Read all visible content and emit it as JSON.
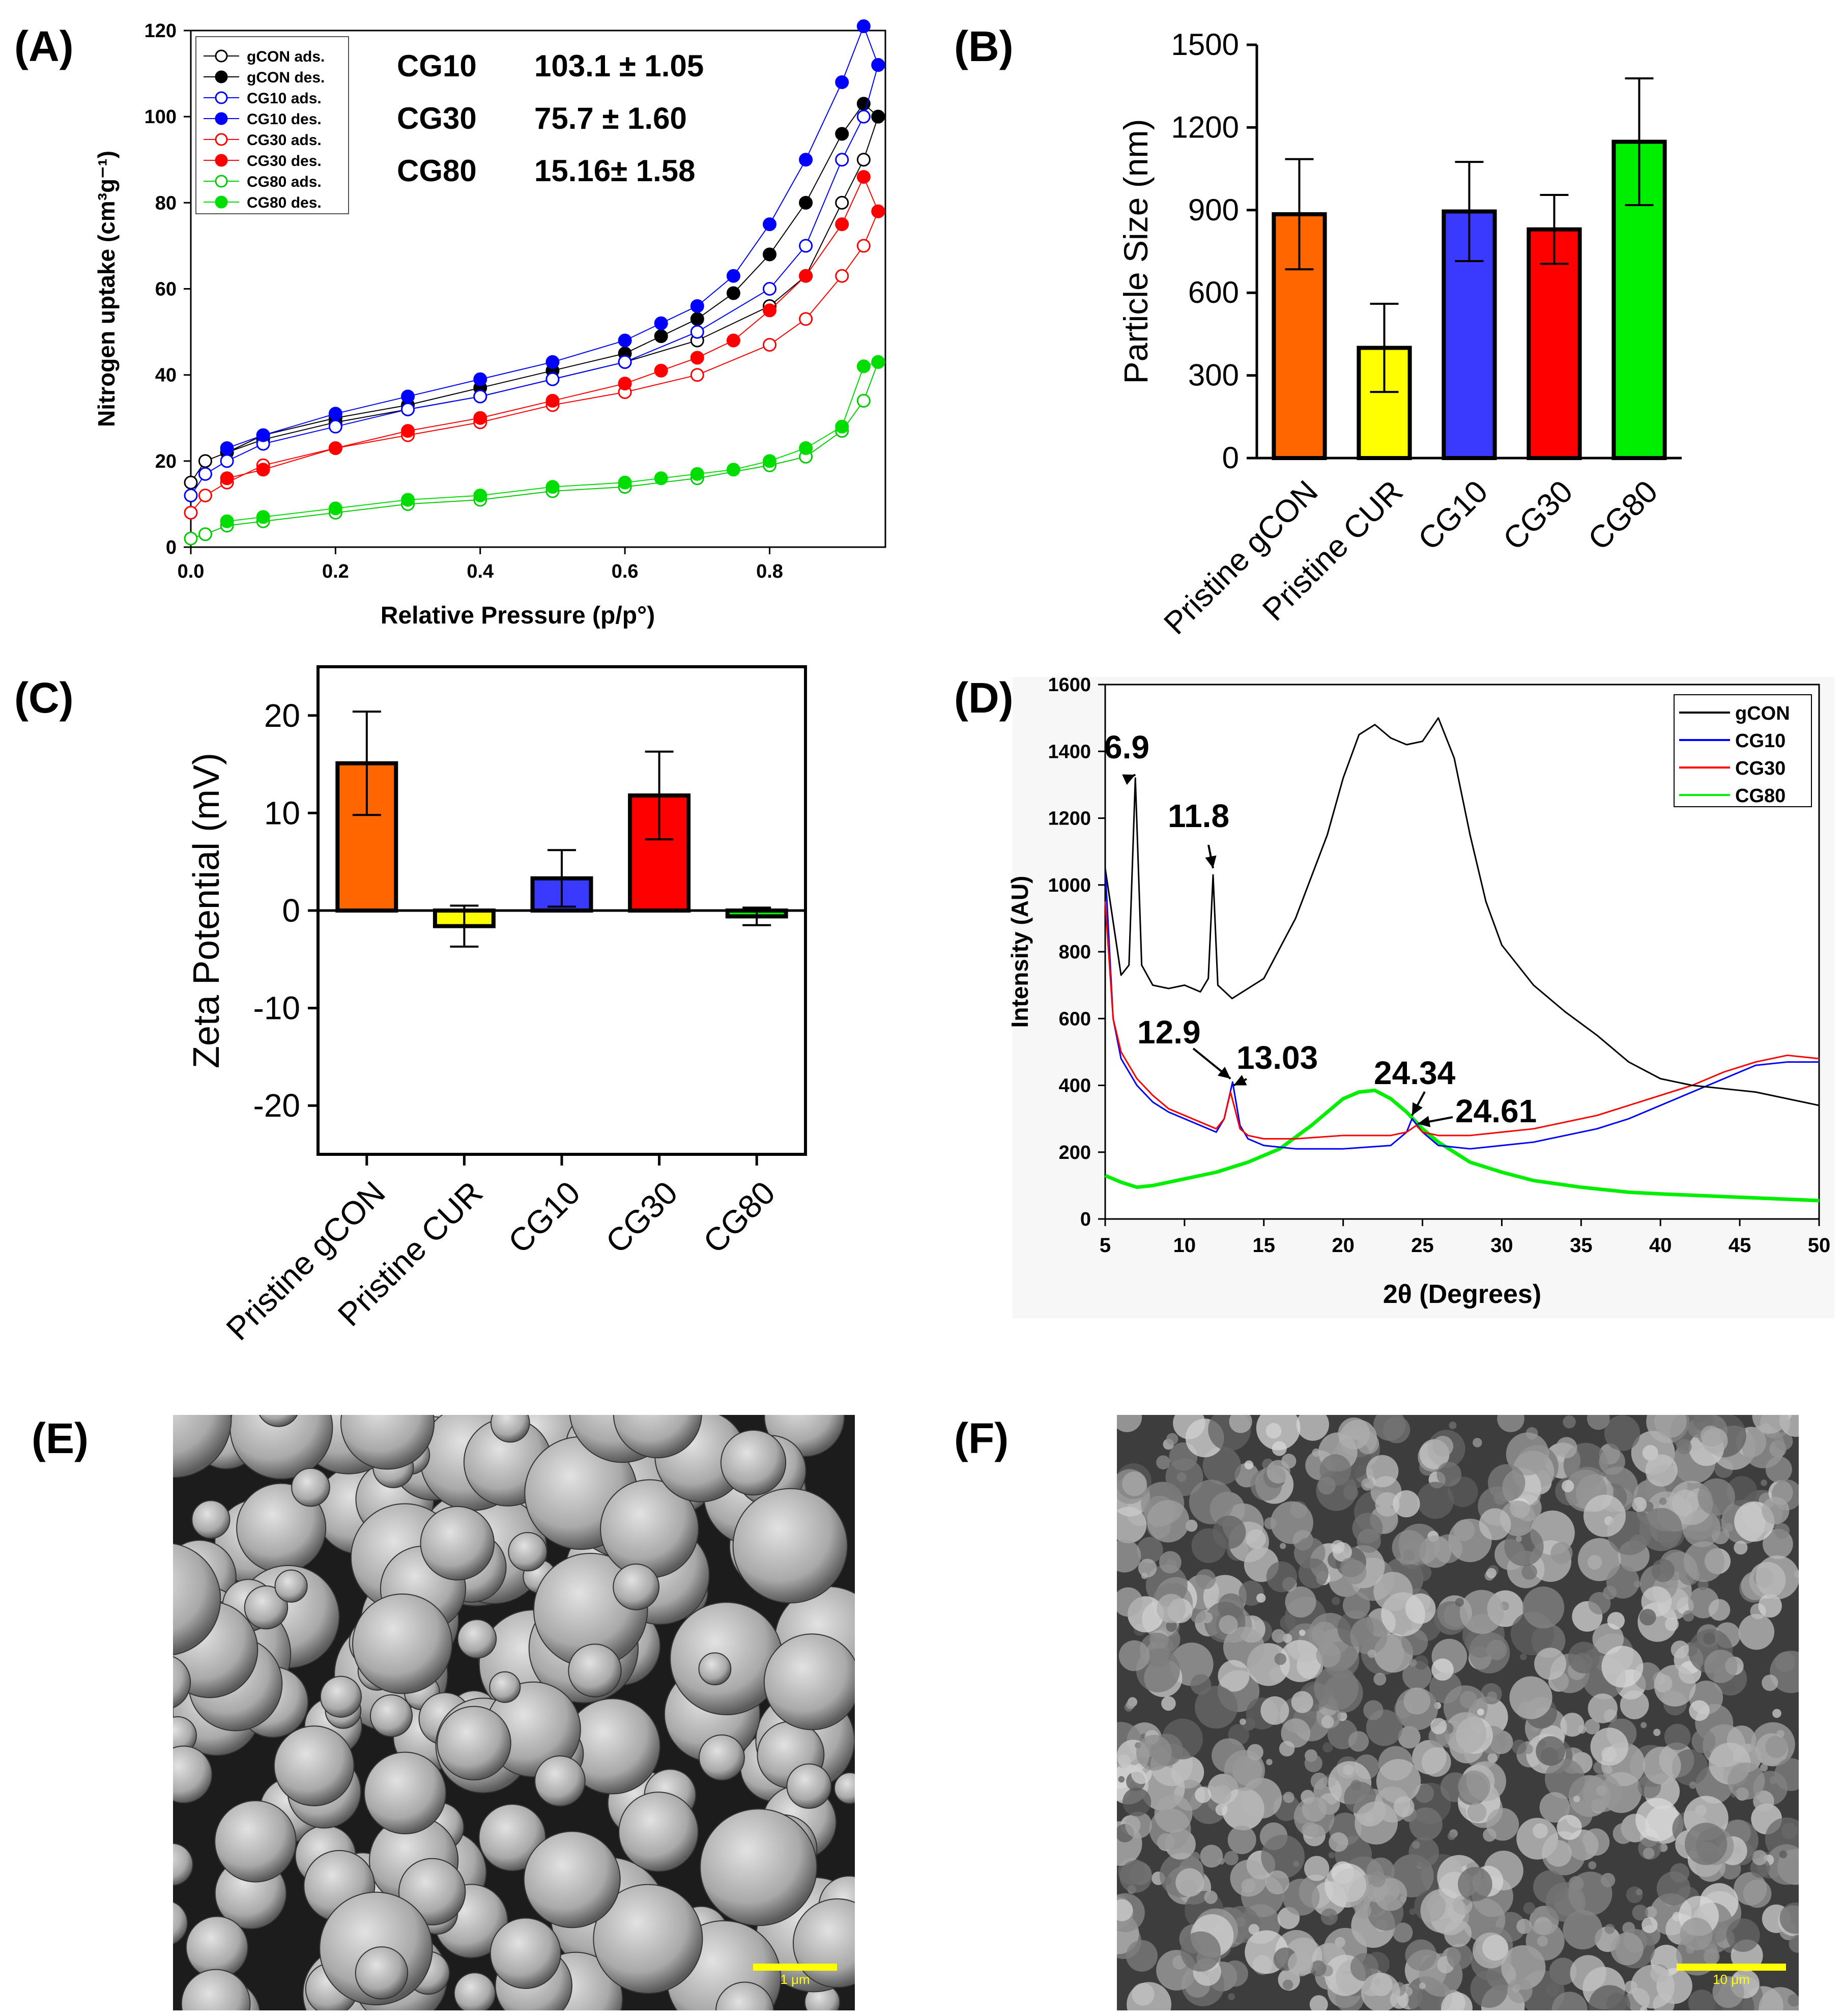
{
  "panels": {
    "A": {
      "label": "(A)"
    },
    "B": {
      "label": "(B)"
    },
    "C": {
      "label": "(C)"
    },
    "D": {
      "label": "(D)"
    },
    "E": {
      "label": "(E)",
      "scalebar": "1 μm"
    },
    "F": {
      "label": "(F)",
      "scalebar": "10 μm"
    }
  },
  "colors": {
    "gCON": "#000000",
    "CG10": "#0000ff",
    "CG30": "#ff0000",
    "CG80": "#00dd00",
    "orange": "#ff6600",
    "yellow": "#ffff00",
    "blueBar": "#3a3aff",
    "redBar": "#ff0000",
    "greenBar": "#00ee00"
  },
  "chart_data": [
    {
      "type": "scatter",
      "panel": "A",
      "xlabel": "Relative Pressure (p/p°)",
      "ylabel": "Nitrogen uptake (cm³g⁻¹)",
      "xlim": [
        0,
        0.96
      ],
      "ylim": [
        0,
        120
      ],
      "xticks": [
        "0.0",
        "0.2",
        "0.4",
        "0.6",
        "0.8"
      ],
      "yticks": [
        "0",
        "20",
        "40",
        "60",
        "80",
        "100",
        "120"
      ],
      "legend_position": "top-left",
      "annotations": [
        {
          "sample": "CG10",
          "value": "103.1 ± 1.05"
        },
        {
          "sample": "CG30",
          "value": "75.7 ± 1.60"
        },
        {
          "sample": "CG80",
          "value": "15.16± 1.58"
        }
      ],
      "series": [
        {
          "name": "gCON ads.",
          "color": "#000000",
          "filled": false,
          "x": [
            0.0,
            0.02,
            0.05,
            0.1,
            0.2,
            0.3,
            0.4,
            0.5,
            0.6,
            0.7,
            0.8,
            0.85,
            0.9,
            0.93,
            0.95
          ],
          "y": [
            15,
            20,
            22,
            25,
            29,
            32,
            35,
            39,
            43,
            48,
            56,
            63,
            80,
            90,
            100
          ]
        },
        {
          "name": "gCON des.",
          "color": "#000000",
          "filled": true,
          "x": [
            0.05,
            0.1,
            0.2,
            0.3,
            0.4,
            0.5,
            0.6,
            0.65,
            0.7,
            0.75,
            0.8,
            0.85,
            0.9,
            0.93,
            0.95
          ],
          "y": [
            22,
            26,
            30,
            33,
            37,
            41,
            45,
            49,
            53,
            59,
            68,
            80,
            96,
            103,
            100
          ]
        },
        {
          "name": "CG10 ads.",
          "color": "#0000ff",
          "filled": false,
          "x": [
            0.0,
            0.02,
            0.05,
            0.1,
            0.2,
            0.3,
            0.4,
            0.5,
            0.6,
            0.7,
            0.8,
            0.85,
            0.9,
            0.93,
            0.95
          ],
          "y": [
            12,
            17,
            20,
            24,
            28,
            32,
            35,
            39,
            43,
            50,
            60,
            70,
            90,
            100,
            112
          ]
        },
        {
          "name": "CG10 des.",
          "color": "#0000ff",
          "filled": true,
          "x": [
            0.05,
            0.1,
            0.2,
            0.3,
            0.4,
            0.5,
            0.6,
            0.65,
            0.7,
            0.75,
            0.8,
            0.85,
            0.9,
            0.93,
            0.95
          ],
          "y": [
            23,
            26,
            31,
            35,
            39,
            43,
            48,
            52,
            56,
            63,
            75,
            90,
            108,
            121,
            112
          ]
        },
        {
          "name": "CG30 ads.",
          "color": "#ff0000",
          "filled": false,
          "x": [
            0.0,
            0.02,
            0.05,
            0.1,
            0.2,
            0.3,
            0.4,
            0.5,
            0.6,
            0.7,
            0.8,
            0.85,
            0.9,
            0.93,
            0.95
          ],
          "y": [
            8,
            12,
            15,
            19,
            23,
            26,
            29,
            33,
            36,
            40,
            47,
            53,
            63,
            70,
            78
          ]
        },
        {
          "name": "CG30 des.",
          "color": "#ff0000",
          "filled": true,
          "x": [
            0.05,
            0.1,
            0.2,
            0.3,
            0.4,
            0.5,
            0.6,
            0.65,
            0.7,
            0.75,
            0.8,
            0.85,
            0.9,
            0.93,
            0.95
          ],
          "y": [
            16,
            18,
            23,
            27,
            30,
            34,
            38,
            41,
            44,
            48,
            55,
            63,
            75,
            86,
            78
          ]
        },
        {
          "name": "CG80 ads.",
          "color": "#00cc00",
          "filled": false,
          "x": [
            0.0,
            0.02,
            0.05,
            0.1,
            0.2,
            0.3,
            0.4,
            0.5,
            0.6,
            0.7,
            0.8,
            0.85,
            0.9,
            0.93,
            0.95
          ],
          "y": [
            2,
            3,
            5,
            6,
            8,
            10,
            11,
            13,
            14,
            16,
            19,
            21,
            27,
            34,
            43
          ]
        },
        {
          "name": "CG80 des.",
          "color": "#00dd00",
          "filled": true,
          "x": [
            0.05,
            0.1,
            0.2,
            0.3,
            0.4,
            0.5,
            0.6,
            0.65,
            0.7,
            0.75,
            0.8,
            0.85,
            0.9,
            0.93,
            0.95
          ],
          "y": [
            6,
            7,
            9,
            11,
            12,
            14,
            15,
            16,
            17,
            18,
            20,
            23,
            28,
            42,
            43
          ]
        }
      ]
    },
    {
      "type": "bar",
      "panel": "B",
      "ylabel": "Particle Size (nm)",
      "ylim": [
        0,
        1500
      ],
      "yticks": [
        "0",
        "300",
        "600",
        "900",
        "1200",
        "1500"
      ],
      "categories": [
        "Pristine gCON",
        "Pristine CUR",
        "CG10",
        "CG30",
        "CG80"
      ],
      "values": [
        885,
        400,
        895,
        830,
        1148
      ],
      "errors": [
        200,
        160,
        180,
        125,
        230
      ],
      "bar_colors": [
        "#ff6600",
        "#ffff00",
        "#3a3aff",
        "#ff0000",
        "#00ee00"
      ]
    },
    {
      "type": "bar",
      "panel": "C",
      "ylabel": "Zeta Potential (mV)",
      "ylim": [
        -25,
        25
      ],
      "yticks": [
        "-20",
        "-10",
        "0",
        "10",
        "20"
      ],
      "categories": [
        "Pristine gCON",
        "Pristine CUR",
        "CG10",
        "CG30",
        "CG80"
      ],
      "values": [
        15.1,
        -1.6,
        3.3,
        11.8,
        -0.6
      ],
      "errors": [
        5.3,
        2.1,
        2.9,
        4.5,
        0.9
      ],
      "bar_colors": [
        "#ff6600",
        "#ffff00",
        "#3a3aff",
        "#ff0000",
        "#00ee00"
      ]
    },
    {
      "type": "line",
      "panel": "D",
      "xlabel": "2θ (Degrees)",
      "ylabel": "Intensity (AU)",
      "xlim": [
        5,
        50
      ],
      "ylim": [
        0,
        1600
      ],
      "xticks": [
        "5",
        "10",
        "15",
        "20",
        "25",
        "30",
        "35",
        "40",
        "45",
        "50"
      ],
      "yticks": [
        "0",
        "200",
        "400",
        "600",
        "800",
        "1000",
        "1200",
        "1400",
        "1600"
      ],
      "legend_position": "top-right",
      "annotations": [
        "6.9",
        "11.8",
        "12.9",
        "13.03",
        "24.34",
        "24.61"
      ],
      "series": [
        {
          "name": "gCON",
          "color": "#000000",
          "x": [
            5,
            6,
            6.5,
            6.9,
            7.3,
            8,
            9,
            10,
            11,
            11.5,
            11.8,
            12.1,
            13,
            15,
            17,
            19,
            20,
            21,
            22,
            23,
            24,
            25,
            26,
            27,
            28,
            29,
            30,
            32,
            34,
            36,
            38,
            40,
            42,
            44,
            46,
            48,
            50
          ],
          "y": [
            1050,
            730,
            760,
            1320,
            760,
            700,
            690,
            700,
            680,
            720,
            1030,
            700,
            660,
            720,
            900,
            1150,
            1320,
            1450,
            1480,
            1440,
            1420,
            1430,
            1500,
            1380,
            1150,
            950,
            820,
            700,
            620,
            550,
            470,
            420,
            400,
            390,
            380,
            360,
            340
          ]
        },
        {
          "name": "CG10",
          "color": "#0000ff",
          "x": [
            5,
            5.5,
            6,
            7,
            8,
            9,
            10,
            11,
            12,
            12.5,
            13.03,
            13.5,
            14,
            15,
            17,
            20,
            23,
            24,
            24.34,
            25,
            26,
            28,
            30,
            32,
            34,
            36,
            38,
            40,
            42,
            44,
            46,
            48,
            50
          ],
          "y": [
            1050,
            600,
            480,
            400,
            350,
            320,
            300,
            280,
            260,
            300,
            410,
            280,
            240,
            220,
            210,
            210,
            220,
            260,
            300,
            260,
            220,
            210,
            220,
            230,
            250,
            270,
            300,
            340,
            380,
            420,
            460,
            470,
            470
          ]
        },
        {
          "name": "CG30",
          "color": "#ff0000",
          "x": [
            5,
            5.5,
            6,
            7,
            8,
            9,
            10,
            11,
            12,
            12.5,
            12.9,
            13.5,
            14,
            15,
            17,
            20,
            23,
            24,
            24.61,
            25,
            26,
            28,
            30,
            32,
            34,
            36,
            38,
            40,
            42,
            44,
            46,
            48,
            50
          ],
          "y": [
            950,
            600,
            500,
            420,
            370,
            330,
            310,
            290,
            270,
            300,
            380,
            270,
            250,
            240,
            240,
            250,
            250,
            260,
            280,
            260,
            250,
            250,
            260,
            270,
            290,
            310,
            340,
            370,
            400,
            440,
            470,
            490,
            480
          ]
        },
        {
          "name": "CG80",
          "color": "#00ee00",
          "x": [
            5,
            6,
            7,
            8,
            10,
            12,
            14,
            16,
            18,
            20,
            21,
            22,
            23,
            24,
            25,
            26,
            27,
            28,
            30,
            32,
            35,
            38,
            40,
            45,
            50
          ],
          "y": [
            130,
            110,
            95,
            100,
            120,
            140,
            170,
            210,
            280,
            360,
            380,
            385,
            360,
            320,
            270,
            230,
            200,
            170,
            140,
            115,
            95,
            80,
            75,
            65,
            55
          ]
        }
      ]
    }
  ]
}
